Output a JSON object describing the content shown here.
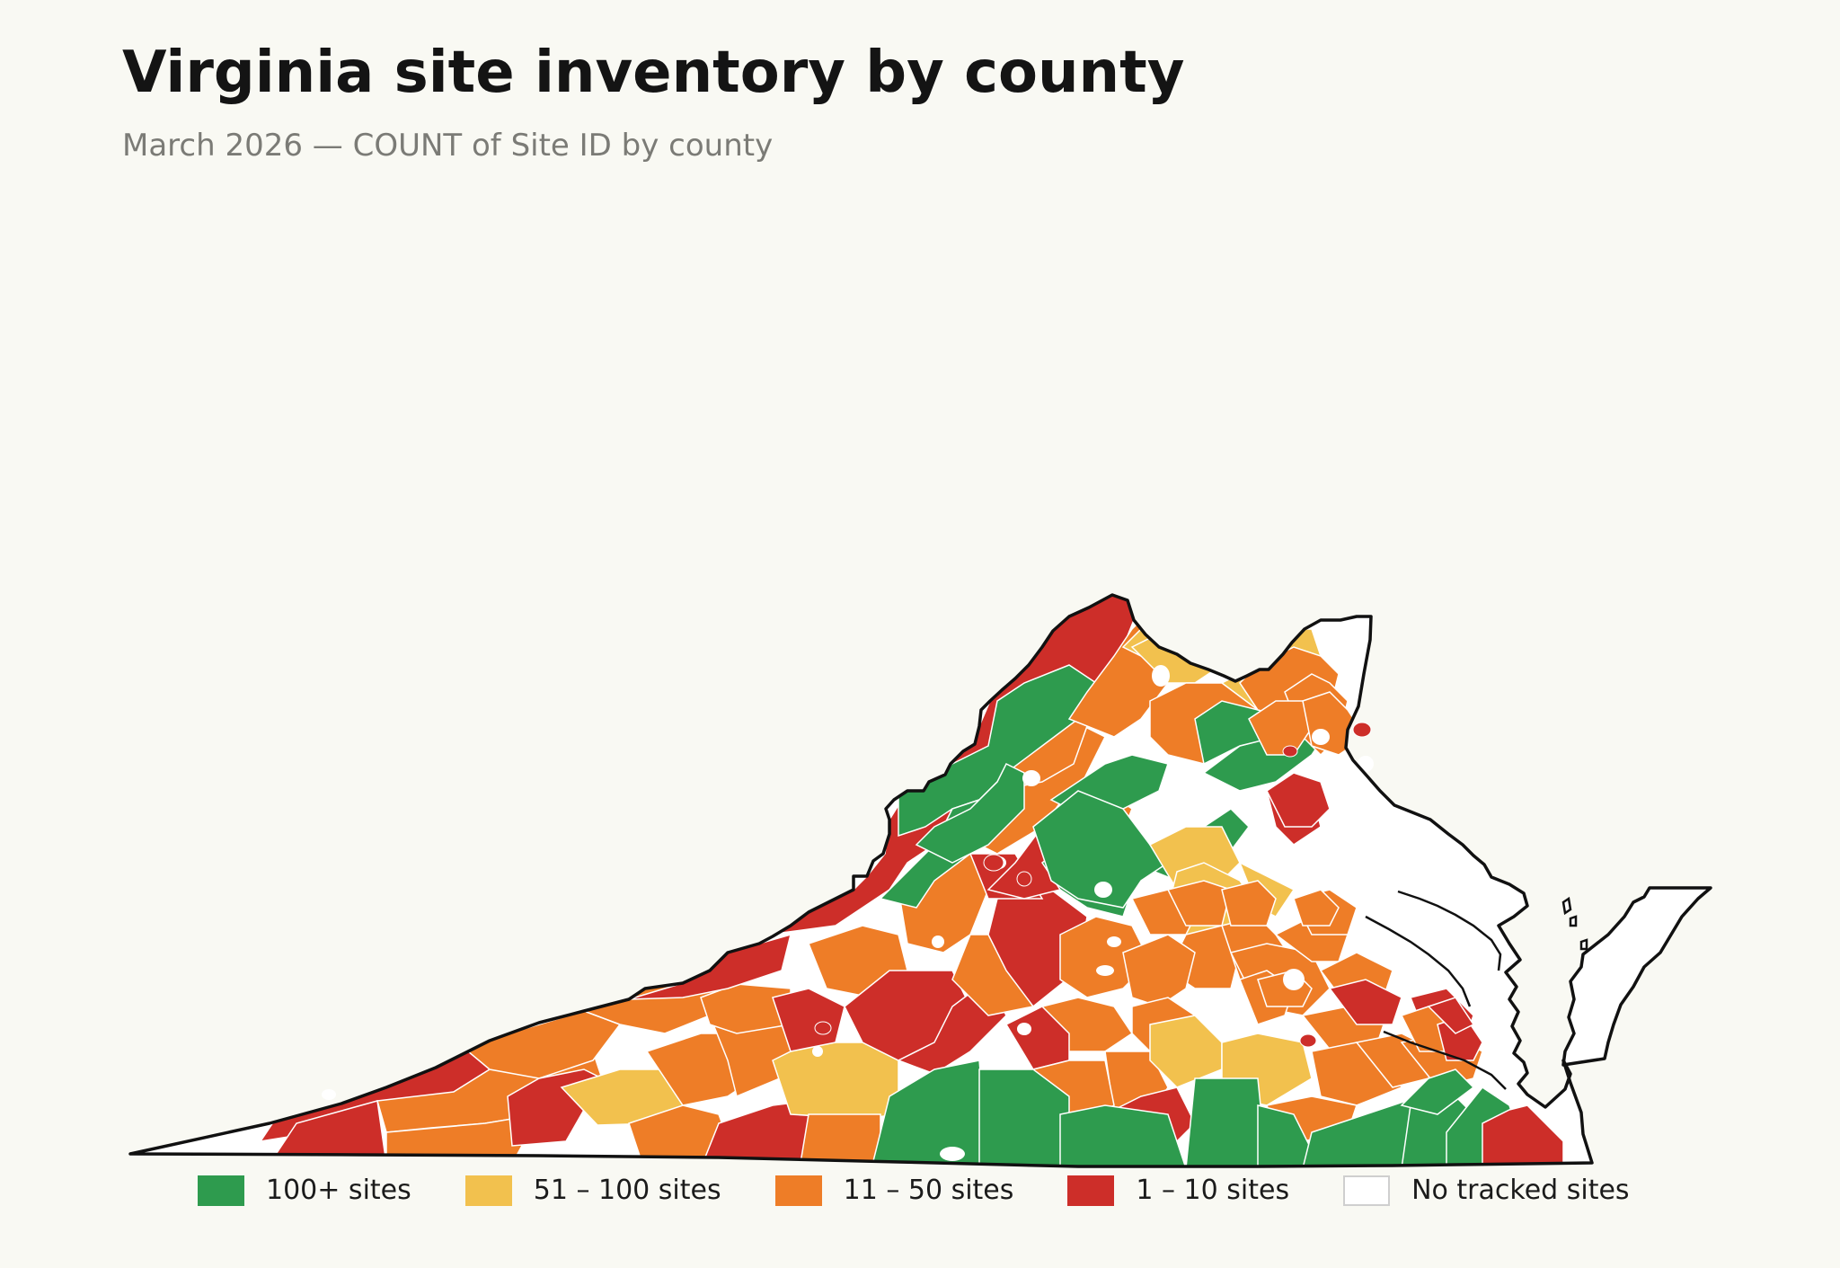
{
  "header": {
    "title": "Virginia site inventory by county",
    "subtitle": "March 2026 — COUNT of Site ID by county"
  },
  "colors": {
    "tier_100_plus": "#2e9b4e",
    "tier_51_100": "#f2c14e",
    "tier_11_50": "#ee7d27",
    "tier_1_10": "#cd2e29",
    "tier_none": "#ffffff",
    "outline": "#111111",
    "background": "#f9f9f3"
  },
  "legend": {
    "items": [
      {
        "label": "100+ sites",
        "color": "#2e9b4e"
      },
      {
        "label": "51 – 100 sites",
        "color": "#f2c14e"
      },
      {
        "label": "11 – 50 sites",
        "color": "#ee7d27"
      },
      {
        "label": "1 – 10 sites",
        "color": "#cd2e29"
      },
      {
        "label": "No tracked sites",
        "color": "#ffffff"
      }
    ]
  }
}
